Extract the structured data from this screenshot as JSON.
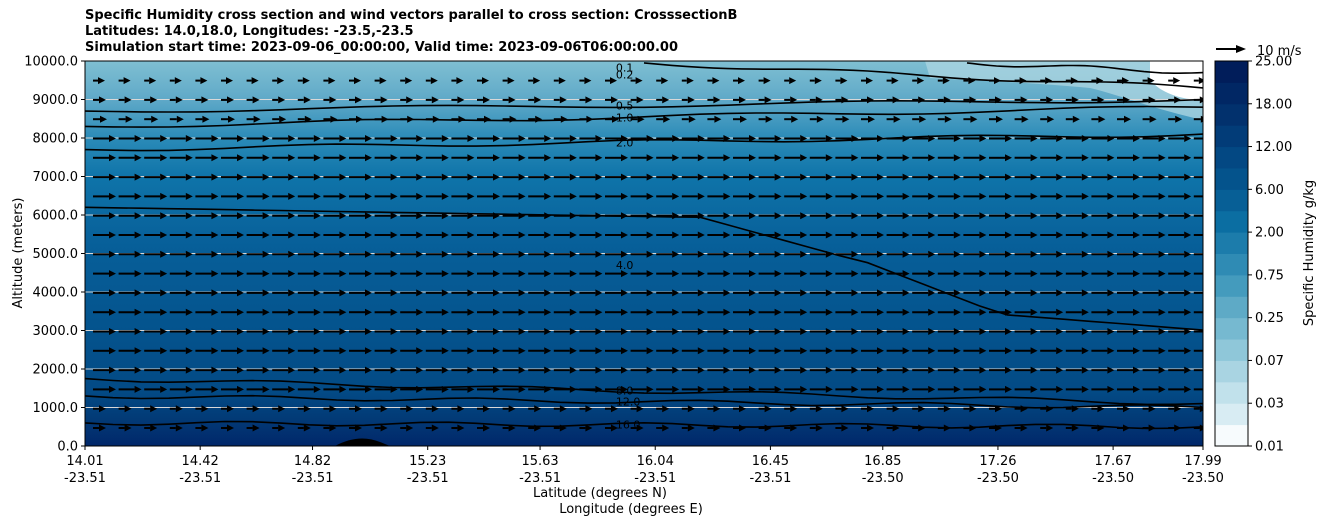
{
  "chart_data": {
    "type": "contourf",
    "title_lines": [
      "Specific Humidity cross section and wind vectors parallel to cross section: CrosssectionB",
      "Latitudes: 14.0,18.0, Longitudes: -23.5,-23.5",
      "Simulation start time: 2023-09-06_00:00:00, Valid time: 2023-09-06T06:00:00.00"
    ],
    "ylabel": "Altitude (meters)",
    "xlabel_lines": [
      "Latitude (degrees N)",
      "Longitude (degrees E)"
    ],
    "ylim": [
      0,
      10000
    ],
    "y_ticks": [
      "0.0",
      "1000.0",
      "2000.0",
      "3000.0",
      "4000.0",
      "5000.0",
      "6000.0",
      "7000.0",
      "8000.0",
      "9000.0",
      "10000.0"
    ],
    "x_ticks": [
      {
        "lat": "14.01",
        "lon": "-23.51"
      },
      {
        "lat": "14.42",
        "lon": "-23.51"
      },
      {
        "lat": "14.82",
        "lon": "-23.51"
      },
      {
        "lat": "15.23",
        "lon": "-23.51"
      },
      {
        "lat": "15.63",
        "lon": "-23.51"
      },
      {
        "lat": "16.04",
        "lon": "-23.51"
      },
      {
        "lat": "16.45",
        "lon": "-23.51"
      },
      {
        "lat": "16.85",
        "lon": "-23.50"
      },
      {
        "lat": "17.26",
        "lon": "-23.50"
      },
      {
        "lat": "17.67",
        "lon": "-23.50"
      },
      {
        "lat": "17.99",
        "lon": "-23.50"
      }
    ],
    "colorbar": {
      "label": "Specific Humidity g/kg",
      "levels": [
        "0.01",
        "0.03",
        "0.07",
        "0.25",
        "0.75",
        "2.00",
        "6.00",
        "12.00",
        "18.00",
        "25.00"
      ]
    },
    "quiver_key": "10 m/s",
    "grid": "horizontal",
    "contours": [
      {
        "level": "0.1",
        "alt_start": 9950,
        "alt_end": 9700,
        "x_start": 17.15,
        "x_end": 17.99
      },
      {
        "level": "0.2",
        "alt_start": 9950,
        "alt_end": 9300,
        "x_start": 16.0,
        "x_end": 17.99
      },
      {
        "level": "0.5",
        "alt_start": 8700,
        "alt_end": 9000,
        "x_start": 14.01,
        "x_end": 17.99
      },
      {
        "level": "1.0",
        "alt_start": 8300,
        "alt_end": 8800,
        "x_start": 14.01,
        "x_end": 17.99
      },
      {
        "level": "2.0",
        "alt_start": 7700,
        "alt_end": 8100,
        "x_start": 14.01,
        "x_end": 17.99
      },
      {
        "level": "4.0",
        "alt_start": 6200,
        "alt_end": 3000,
        "x_start": 14.01,
        "x_end": 17.99
      },
      {
        "level": "8.0",
        "alt_start": 1750,
        "alt_end": 1100,
        "x_start": 14.01,
        "x_end": 17.99
      },
      {
        "level": "12.0",
        "alt_start": 1300,
        "alt_end": 1000,
        "x_start": 14.01,
        "x_end": 17.99
      },
      {
        "level": "16.0",
        "alt_start": 600,
        "alt_end": 500,
        "x_start": 14.01,
        "x_end": 17.99
      }
    ],
    "contour_labels": [
      "0.1",
      "0.2",
      "0.5",
      "1.0",
      "2.0",
      "4.0",
      "8.0",
      "12.0",
      "16.0"
    ]
  }
}
